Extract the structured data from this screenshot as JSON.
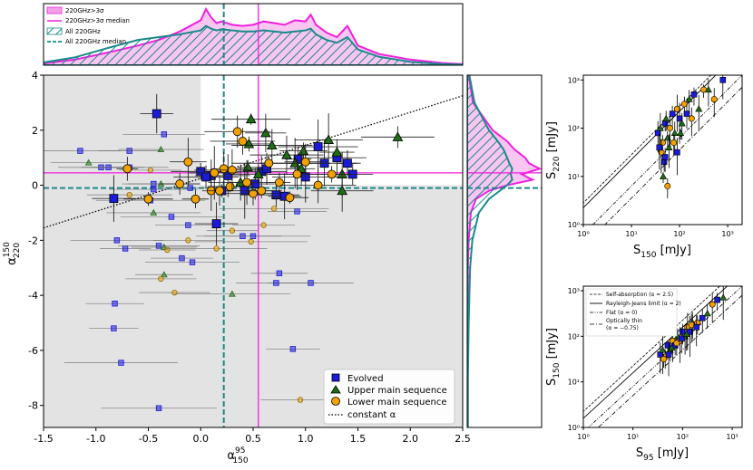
{
  "chart_data": [
    {
      "id": "main",
      "type": "scatter",
      "xlabel_base": "α",
      "xlabel_sup": "95",
      "xlabel_sub": "150",
      "ylabel_base": "α",
      "ylabel_sup": "150",
      "ylabel_sub": "220",
      "xlim": [
        -1.5,
        2.5
      ],
      "ylim": [
        -8.8,
        4.0
      ],
      "xticks": [
        "-1.5",
        "-1.0",
        "-0.5",
        "0.0",
        "0.5",
        "1.0",
        "1.5",
        "2.0",
        "2.5"
      ],
      "yticks": [
        "4",
        "2",
        "0",
        "-2",
        "-4",
        "-6",
        "-8"
      ],
      "median_220": 0.55,
      "median_all_x": 0.22,
      "median_220_y": 0.45,
      "median_all_y": -0.1,
      "shade_x_below": 0.0,
      "shade_y_below": 0.0,
      "constant_alpha_line": {
        "x": [
          -1.5,
          2.5
        ],
        "y": [
          -1.55,
          3.25
        ]
      },
      "legend": [
        "Evolved",
        "Upper main sequence",
        "Lower main sequence",
        "constant α"
      ],
      "series": [
        {
          "name": "Evolved",
          "color": "#1a1adb",
          "bright": [
            [
              -0.42,
              2.6
            ],
            [
              -0.83,
              -0.48
            ],
            [
              0.0,
              0.5
            ],
            [
              0.1,
              0.35
            ],
            [
              0.2,
              -0.2
            ],
            [
              0.26,
              0.35
            ],
            [
              0.42,
              -0.2
            ],
            [
              0.52,
              0.05
            ],
            [
              0.58,
              0.5
            ],
            [
              0.63,
              0.6
            ],
            [
              0.72,
              -0.35
            ],
            [
              0.8,
              -0.4
            ],
            [
              0.93,
              0.95
            ],
            [
              1.0,
              0.3
            ],
            [
              1.12,
              1.4
            ],
            [
              1.18,
              0.8
            ],
            [
              1.3,
              1.0
            ],
            [
              1.4,
              0.8
            ],
            [
              1.45,
              0.4
            ],
            [
              0.15,
              -1.4
            ],
            [
              0.05,
              0.3
            ]
          ],
          "faint": [
            [
              -1.15,
              1.25
            ],
            [
              -0.95,
              0.65
            ],
            [
              -0.88,
              0.65
            ],
            [
              -0.68,
              1.25
            ],
            [
              -0.68,
              0.65
            ],
            [
              -0.35,
              1.85
            ],
            [
              -0.45,
              0.05
            ],
            [
              -0.48,
              -0.55
            ],
            [
              -0.45,
              -0.15
            ],
            [
              -0.1,
              -0.1
            ],
            [
              -0.12,
              -1.45
            ],
            [
              -0.28,
              -1.15
            ],
            [
              -0.8,
              -2.0
            ],
            [
              -0.72,
              -2.3
            ],
            [
              -0.4,
              -2.2
            ],
            [
              -0.18,
              -2.65
            ],
            [
              -0.08,
              -2.8
            ],
            [
              0.75,
              -3.2
            ],
            [
              1.05,
              -3.55
            ],
            [
              0.72,
              -3.55
            ],
            [
              -0.82,
              -4.3
            ],
            [
              -0.83,
              -5.2
            ],
            [
              -0.76,
              -6.45
            ],
            [
              -0.4,
              -8.1
            ],
            [
              0.88,
              -5.95
            ],
            [
              0.4,
              -1.85
            ],
            [
              0.5,
              -1.85
            ],
            [
              0.92,
              -0.95
            ]
          ]
        },
        {
          "name": "Upper main sequence",
          "color": "#1f6e16",
          "bright": [
            [
              0.48,
              2.4
            ],
            [
              0.62,
              1.9
            ],
            [
              0.46,
              1.5
            ],
            [
              0.68,
              1.45
            ],
            [
              0.82,
              1.1
            ],
            [
              0.98,
              1.25
            ],
            [
              1.22,
              1.65
            ],
            [
              1.3,
              1.2
            ],
            [
              1.35,
              0.4
            ],
            [
              1.35,
              -0.2
            ],
            [
              1.88,
              1.75
            ],
            [
              0.55,
              0.4
            ],
            [
              0.45,
              0.65
            ],
            [
              0.38,
              0.1
            ],
            [
              0.9,
              0.8
            ],
            [
              0.96,
              0.6
            ]
          ],
          "faint": [
            [
              -1.07,
              0.82
            ],
            [
              -0.38,
              1.3
            ],
            [
              -0.45,
              -1.0
            ],
            [
              -0.35,
              -2.25
            ],
            [
              -0.35,
              -3.25
            ],
            [
              0.3,
              -3.95
            ],
            [
              -0.38,
              0.05
            ]
          ]
        },
        {
          "name": "Lower main sequence",
          "color": "#f2a200",
          "bright": [
            [
              -0.7,
              0.6
            ],
            [
              -0.5,
              -0.5
            ],
            [
              -0.2,
              0.05
            ],
            [
              -0.12,
              0.85
            ],
            [
              -0.05,
              -0.5
            ],
            [
              0.1,
              -0.2
            ],
            [
              0.18,
              -0.2
            ],
            [
              0.22,
              0.6
            ],
            [
              0.28,
              -0.05
            ],
            [
              0.35,
              1.95
            ],
            [
              0.4,
              1.6
            ],
            [
              0.44,
              0.1
            ],
            [
              0.5,
              -0.3
            ],
            [
              0.58,
              -0.2
            ],
            [
              0.65,
              0.8
            ],
            [
              0.75,
              0.1
            ],
            [
              0.85,
              -0.45
            ],
            [
              0.92,
              0.4
            ],
            [
              1.0,
              0.85
            ],
            [
              1.12,
              0.0
            ],
            [
              1.25,
              0.4
            ],
            [
              0.3,
              0.55
            ],
            [
              0.13,
              0.45
            ]
          ],
          "faint": [
            [
              -0.48,
              0.55
            ],
            [
              -0.68,
              -0.35
            ],
            [
              -0.12,
              -2.0
            ],
            [
              -0.32,
              -2.35
            ],
            [
              0.15,
              -2.3
            ],
            [
              -0.38,
              -3.4
            ],
            [
              -0.25,
              -3.9
            ],
            [
              0.3,
              -1.65
            ],
            [
              0.48,
              -2.05
            ],
            [
              0.6,
              -1.45
            ],
            [
              0.7,
              -0.85
            ],
            [
              0.95,
              -7.8
            ]
          ]
        }
      ]
    },
    {
      "id": "top_marginal",
      "type": "area",
      "legend": [
        "220GHz>3σ",
        "220GHz>3σ median",
        "All 220GHz",
        "All 220GHz median"
      ],
      "x": [
        -1.5,
        -1.2,
        -0.9,
        -0.6,
        -0.4,
        -0.2,
        0.0,
        0.05,
        0.1,
        0.15,
        0.2,
        0.3,
        0.4,
        0.5,
        0.6,
        0.7,
        0.8,
        0.9,
        1.0,
        1.05,
        1.1,
        1.2,
        1.3,
        1.4,
        1.5,
        1.7,
        2.0,
        2.3,
        2.5
      ],
      "density_220": [
        0.03,
        0.1,
        0.22,
        0.35,
        0.45,
        0.6,
        0.8,
        1.0,
        0.85,
        0.75,
        0.78,
        0.72,
        0.7,
        0.72,
        0.78,
        0.75,
        0.72,
        0.8,
        0.78,
        0.9,
        0.72,
        0.58,
        0.5,
        0.7,
        0.35,
        0.2,
        0.1,
        0.04,
        0.02
      ],
      "density_all": [
        0.05,
        0.14,
        0.3,
        0.45,
        0.5,
        0.55,
        0.62,
        0.7,
        0.65,
        0.62,
        0.64,
        0.62,
        0.6,
        0.6,
        0.62,
        0.6,
        0.58,
        0.6,
        0.62,
        0.65,
        0.55,
        0.45,
        0.4,
        0.5,
        0.28,
        0.15,
        0.06,
        0.02,
        0.01
      ]
    },
    {
      "id": "right_marginal",
      "type": "area",
      "y": [
        4.0,
        3.0,
        2.0,
        1.6,
        1.3,
        1.0,
        0.8,
        0.6,
        0.4,
        0.2,
        0.0,
        -0.2,
        -0.5,
        -1.0,
        -2.0,
        -3.0,
        -4.0,
        -5.0,
        -6.0,
        -7.0,
        -8.0,
        -8.8
      ],
      "density_220": [
        0.02,
        0.08,
        0.35,
        0.55,
        0.65,
        0.8,
        0.85,
        1.0,
        0.75,
        0.9,
        0.55,
        0.3,
        0.12,
        0.05,
        0.02,
        0.01,
        0.01,
        0.0,
        0.0,
        0.0,
        0.0,
        0.0
      ],
      "density_all": [
        0.03,
        0.1,
        0.3,
        0.42,
        0.5,
        0.55,
        0.58,
        0.62,
        0.6,
        0.62,
        0.55,
        0.45,
        0.3,
        0.16,
        0.07,
        0.04,
        0.03,
        0.02,
        0.015,
        0.01,
        0.01,
        0.01
      ]
    },
    {
      "id": "flux_220_vs_150",
      "type": "scatter",
      "xlabel": "S",
      "xlabel_sub": "150",
      "xlabel_unit": " [mJy]",
      "ylabel": "S",
      "ylabel_sub": "220",
      "ylabel_unit": " [mJy]",
      "xticks": [
        "10⁰",
        "10¹",
        "10²",
        "10³"
      ],
      "yticks": [
        "10⁰",
        "10¹",
        "10²",
        "10³"
      ],
      "x_log_range": [
        0,
        3.3
      ],
      "y_log_range": [
        0,
        3.1
      ],
      "points": [
        [
          1.55,
          1.9
        ],
        [
          1.6,
          2.0
        ],
        [
          1.65,
          1.7
        ],
        [
          1.7,
          2.1
        ],
        [
          1.75,
          1.8
        ],
        [
          1.62,
          1.5
        ],
        [
          1.68,
          1.3
        ],
        [
          1.72,
          2.2
        ],
        [
          1.8,
          2.0
        ],
        [
          1.85,
          2.3
        ],
        [
          1.9,
          1.9
        ],
        [
          1.95,
          2.4
        ],
        [
          2.0,
          2.2
        ],
        [
          2.05,
          2.1
        ],
        [
          2.1,
          2.5
        ],
        [
          2.15,
          2.3
        ],
        [
          2.2,
          2.6
        ],
        [
          2.25,
          2.2
        ],
        [
          2.3,
          2.7
        ],
        [
          2.4,
          2.4
        ],
        [
          2.5,
          2.8
        ],
        [
          1.58,
          1.6
        ],
        [
          1.66,
          1.0
        ],
        [
          1.75,
          0.8
        ],
        [
          1.7,
          1.4
        ],
        [
          2.6,
          2.8
        ],
        [
          2.72,
          2.6
        ],
        [
          2.9,
          3.0
        ],
        [
          1.78,
          1.6
        ],
        [
          1.88,
          1.7
        ],
        [
          1.95,
          1.5
        ],
        [
          2.02,
          1.9
        ]
      ]
    },
    {
      "id": "flux_150_vs_95",
      "type": "scatter",
      "xlabel": "S",
      "xlabel_sub": "95",
      "xlabel_unit": " [mJy]",
      "ylabel": "S",
      "ylabel_sub": "150",
      "ylabel_unit": " [mJy]",
      "xticks": [
        "10⁰",
        "10¹",
        "10²",
        "10³"
      ],
      "yticks": [
        "10⁰",
        "10¹",
        "10²",
        "10³"
      ],
      "x_log_range": [
        0,
        3.2
      ],
      "y_log_range": [
        0,
        3.1
      ],
      "legend": [
        "Self-absorption (α = 2.5)",
        "Rayleigh-Jeans limit (α = 2)",
        "Flat (α = 0)",
        "Optically thin",
        "(α = −0.75)"
      ],
      "points": [
        [
          1.55,
          1.6
        ],
        [
          1.6,
          1.7
        ],
        [
          1.65,
          1.55
        ],
        [
          1.7,
          1.8
        ],
        [
          1.75,
          1.7
        ],
        [
          1.8,
          1.9
        ],
        [
          1.85,
          1.8
        ],
        [
          1.9,
          2.0
        ],
        [
          1.95,
          1.9
        ],
        [
          2.0,
          2.1
        ],
        [
          2.05,
          2.0
        ],
        [
          2.1,
          2.2
        ],
        [
          2.15,
          2.1
        ],
        [
          2.2,
          2.3
        ],
        [
          2.3,
          2.3
        ],
        [
          2.4,
          2.4
        ],
        [
          2.5,
          2.5
        ],
        [
          2.6,
          2.7
        ],
        [
          2.7,
          2.8
        ],
        [
          2.82,
          2.85
        ],
        [
          1.62,
          1.5
        ],
        [
          1.72,
          1.6
        ],
        [
          1.78,
          1.75
        ],
        [
          1.88,
          1.85
        ],
        [
          1.98,
          1.95
        ],
        [
          2.08,
          2.05
        ],
        [
          2.18,
          2.25
        ],
        [
          2.28,
          2.2
        ]
      ]
    }
  ]
}
